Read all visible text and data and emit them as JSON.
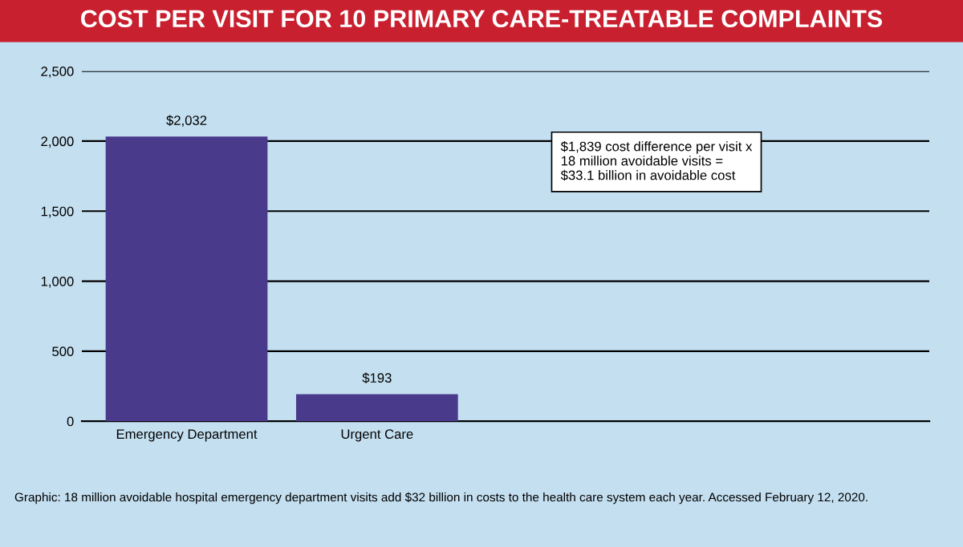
{
  "chart_data": {
    "type": "bar",
    "title": "COST PER VISIT FOR 10 PRIMARY CARE-TREATABLE COMPLAINTS",
    "categories": [
      "Emergency Department",
      "Urgent Care"
    ],
    "values": [
      2032,
      193
    ],
    "value_labels": [
      "$2,032",
      "$193"
    ],
    "color": "#4a3a8c",
    "ylim": [
      0,
      2500
    ],
    "yticks": [
      0,
      500,
      {
        "value": 1000,
        "label": "1,000"
      },
      {
        "value": 1500,
        "label": "1,500"
      },
      {
        "value": 2000,
        "label": "2,000"
      },
      {
        "value": 2500,
        "label": "2,500"
      }
    ],
    "grid": "y",
    "annotations": [
      "$1,839 cost difference per visit x\n18 million avoidable visits =\n$33.1 billion in avoidable cost",
      "Graphic: 18 million avoidable hospital emergency department visits add $32 billion in costs to the health care system each year. Accessed February 12, 2020."
    ]
  }
}
